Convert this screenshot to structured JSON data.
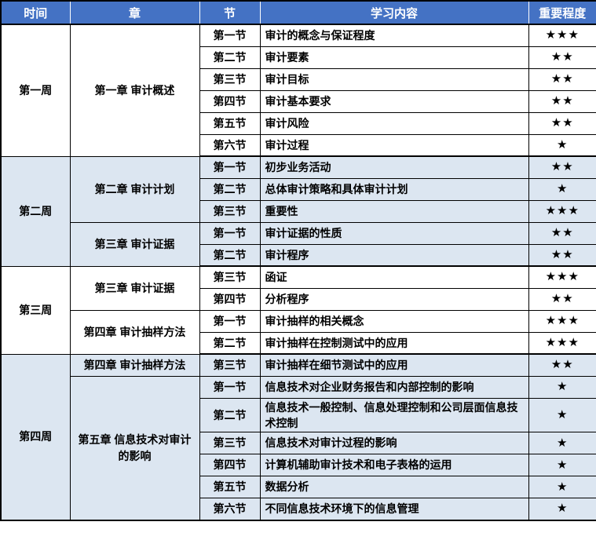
{
  "header": {
    "columns": [
      "时间",
      "章",
      "节",
      "学习内容",
      "重要程度"
    ]
  },
  "weeks": [
    {
      "time": "第一周",
      "shaded": false,
      "chapters": [
        {
          "title": "第一章 审计概述",
          "sections": [
            {
              "no": "第一节",
              "content": "审计的概念与保证程度",
              "importance": "★★★"
            },
            {
              "no": "第二节",
              "content": "审计要素",
              "importance": "★★"
            },
            {
              "no": "第三节",
              "content": "审计目标",
              "importance": "★★"
            },
            {
              "no": "第四节",
              "content": "审计基本要求",
              "importance": "★★"
            },
            {
              "no": "第五节",
              "content": "审计风险",
              "importance": "★★"
            },
            {
              "no": "第六节",
              "content": "审计过程",
              "importance": "★"
            }
          ]
        }
      ]
    },
    {
      "time": "第二周",
      "shaded": true,
      "chapters": [
        {
          "title": "第二章 审计计划",
          "sections": [
            {
              "no": "第一节",
              "content": "初步业务活动",
              "importance": "★★"
            },
            {
              "no": "第二节",
              "content": "总体审计策略和具体审计计划",
              "importance": "★"
            },
            {
              "no": "第三节",
              "content": "重要性",
              "importance": "★★★"
            }
          ]
        },
        {
          "title": "第三章 审计证据",
          "sections": [
            {
              "no": "第一节",
              "content": "审计证据的性质",
              "importance": "★★"
            },
            {
              "no": "第二节",
              "content": "审计程序",
              "importance": "★★"
            }
          ]
        }
      ]
    },
    {
      "time": "第三周",
      "shaded": false,
      "chapters": [
        {
          "title": "第三章 审计证据",
          "sections": [
            {
              "no": "第三节",
              "content": "函证",
              "importance": "★★★"
            },
            {
              "no": "第四节",
              "content": "分析程序",
              "importance": "★★"
            }
          ]
        },
        {
          "title": "第四章 审计抽样方法",
          "sections": [
            {
              "no": "第一节",
              "content": "审计抽样的相关概念",
              "importance": "★★★"
            },
            {
              "no": "第二节",
              "content": "审计抽样在控制测试中的应用",
              "importance": "★★★"
            }
          ]
        }
      ]
    },
    {
      "time": "第四周",
      "shaded": true,
      "chapters": [
        {
          "title": "第四章 审计抽样方法",
          "sections": [
            {
              "no": "第三节",
              "content": "审计抽样在细节测试中的应用",
              "importance": "★★"
            }
          ]
        },
        {
          "title": "第五章 信息技术对审计的影响",
          "sections": [
            {
              "no": "第一节",
              "content": "信息技术对企业财务报告和内部控制的影响",
              "importance": "★"
            },
            {
              "no": "第二节",
              "content": "信息技术一般控制、信息处理控制和公司层面信息技术控制",
              "importance": "★"
            },
            {
              "no": "第三节",
              "content": "信息技术对审计过程的影响",
              "importance": "★"
            },
            {
              "no": "第四节",
              "content": "计算机辅助审计技术和电子表格的运用",
              "importance": "★"
            },
            {
              "no": "第五节",
              "content": "数据分析",
              "importance": "★"
            },
            {
              "no": "第六节",
              "content": "不同信息技术环境下的信息管理",
              "importance": "★"
            }
          ]
        }
      ]
    }
  ],
  "colors": {
    "header_bg": "#4472C4",
    "header_text": "#FFFFFF",
    "shaded_row_bg": "#DCE6F1",
    "row_bg": "#FFFFFF",
    "border": "#000000",
    "star_color": "#000000"
  }
}
